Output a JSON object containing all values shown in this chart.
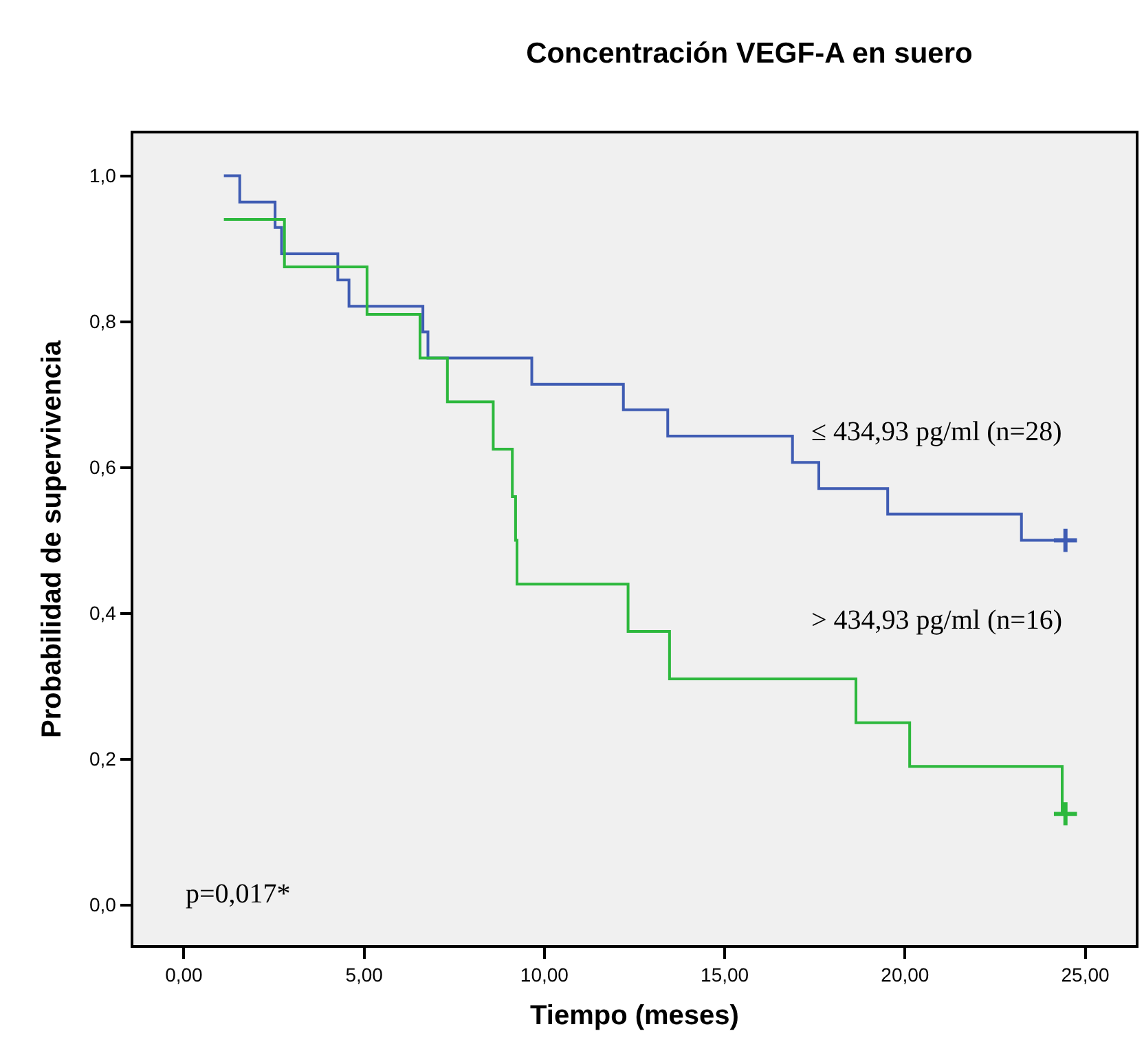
{
  "chart_data": {
    "type": "step",
    "title": "Concentración VEGF-A en suero",
    "xlabel": "Tiempo (meses)",
    "ylabel": "Probabilidad de supervivencia",
    "xlim": [
      -1.4,
      26.4
    ],
    "ylim": [
      -0.055,
      1.058
    ],
    "xticks": [
      {
        "value": 0,
        "label": "0,00"
      },
      {
        "value": 5,
        "label": "5,00"
      },
      {
        "value": 10,
        "label": "10,00"
      },
      {
        "value": 15,
        "label": "15,00"
      },
      {
        "value": 20,
        "label": "20,00"
      },
      {
        "value": 25,
        "label": "25,00"
      }
    ],
    "yticks": [
      {
        "value": 0,
        "label": "0,0"
      },
      {
        "value": 0.2,
        "label": "0,2"
      },
      {
        "value": 0.4,
        "label": "0,4"
      },
      {
        "value": 0.6,
        "label": "0,6"
      },
      {
        "value": 0.8,
        "label": "0,8"
      },
      {
        "value": 1,
        "label": "1,0"
      }
    ],
    "grid": false,
    "legend": false,
    "series": [
      {
        "name": "≤ 434,93 pg/ml (n=28)",
        "color": "#3f5cb3",
        "x": [
          1.11,
          1.55,
          2.53,
          2.71,
          4.27,
          4.58,
          6.63,
          6.77,
          9.65,
          12.19,
          13.42,
          16.88,
          17.61,
          19.52,
          23.23,
          24.45
        ],
        "values": [
          1.0,
          0.964,
          0.929,
          0.893,
          0.857,
          0.821,
          0.786,
          0.75,
          0.714,
          0.679,
          0.643,
          0.607,
          0.571,
          0.536,
          0.5,
          0.5
        ]
      },
      {
        "name": "> 434,93 pg/ml (n=16)",
        "color": "#2db83d",
        "x": [
          1.11,
          2.79,
          5.08,
          6.55,
          7.31,
          8.58,
          9.11,
          9.2,
          9.24,
          12.32,
          13.47,
          18.64,
          20.13,
          24.36
        ],
        "values": [
          0.94,
          0.875,
          0.81,
          0.75,
          0.69,
          0.625,
          0.56,
          0.5,
          0.44,
          0.375,
          0.31,
          0.25,
          0.19,
          0.125
        ]
      },
      {
        "type": "scatter",
        "marker": "cross",
        "color": "#3f5cb3",
        "x": [
          24.45
        ],
        "values": [
          0.5
        ]
      },
      {
        "type": "scatter",
        "marker": "cross",
        "color": "#2db83d",
        "x": [
          24.45
        ],
        "values": [
          0.125
        ]
      }
    ],
    "annotations": [
      "p=0,017*"
    ]
  }
}
